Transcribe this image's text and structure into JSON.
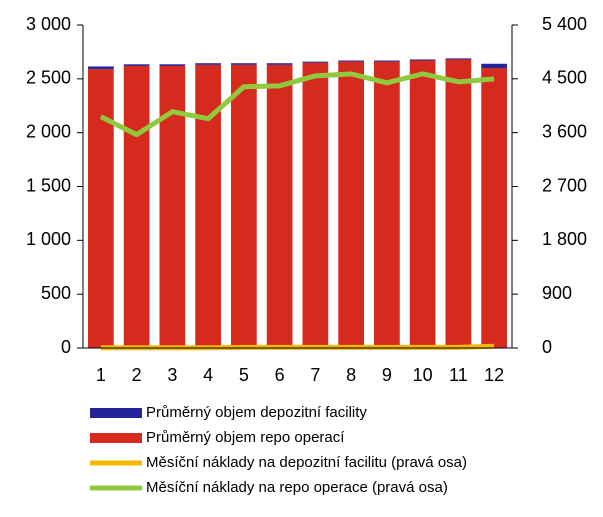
{
  "chart_data": {
    "type": "bar",
    "categories": [
      "1",
      "2",
      "3",
      "4",
      "5",
      "6",
      "7",
      "8",
      "9",
      "10",
      "11",
      "12"
    ],
    "series": [
      {
        "name": "Průměrný objem depozitní facility",
        "color": "#23239a",
        "values": [
          25,
          15,
          15,
          15,
          15,
          15,
          10,
          10,
          10,
          10,
          10,
          40
        ],
        "stack": true
      },
      {
        "name": "Průměrný objem repo operací",
        "color": "#d52b1e",
        "values": [
          2590,
          2620,
          2620,
          2630,
          2630,
          2630,
          2650,
          2660,
          2660,
          2670,
          2680,
          2600
        ],
        "stack": true
      },
      {
        "name": "Měsíční náklady na depozitní facilitu (pravá osa)",
        "color": "#f5b800",
        "values": [
          5,
          5,
          5,
          5,
          10,
          10,
          10,
          10,
          10,
          10,
          10,
          30
        ],
        "axis": "y2",
        "type": "line"
      },
      {
        "name": "Měsíční náklady na repo operace (pravá osa)",
        "color": "#92c83e",
        "values": [
          3867,
          3567,
          3950,
          3833,
          4367,
          4383,
          4550,
          4583,
          4433,
          4583,
          4450,
          4500
        ],
        "axis": "y2",
        "type": "line"
      }
    ],
    "ylim": [
      0,
      3000
    ],
    "yticks": [
      0,
      500,
      {
        "value": 1000,
        "label": "1 000"
      },
      {
        "value": 1500,
        "label": "1 500"
      },
      {
        "value": 2000,
        "label": "2 000"
      },
      {
        "value": 2500,
        "label": "2 500"
      },
      {
        "value": 3000,
        "label": "3 000"
      }
    ],
    "y2lim": [
      0,
      5400
    ],
    "y2ticks": [
      0,
      900,
      {
        "value": 1800,
        "label": "1 800"
      },
      {
        "value": 2700,
        "label": "2 700"
      },
      {
        "value": 3600,
        "label": "3 600"
      },
      {
        "value": 4500,
        "label": "4 500"
      },
      {
        "value": 5400,
        "label": "5 400"
      }
    ],
    "grid": false,
    "legend": "bottom"
  }
}
